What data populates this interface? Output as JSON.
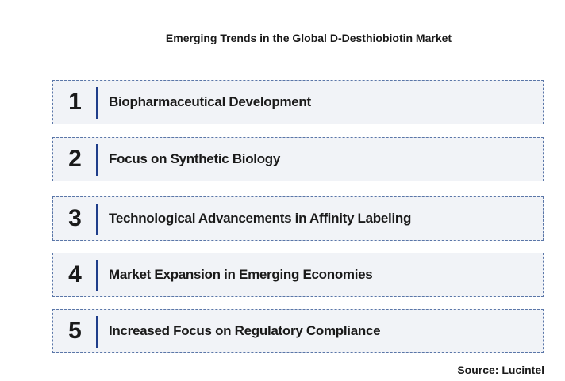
{
  "title": "Emerging Trends in the Global D-Desthiobiotin Market",
  "trends": [
    {
      "number": "1",
      "label": "Biopharmaceutical Development"
    },
    {
      "number": "2",
      "label": "Focus on Synthetic Biology"
    },
    {
      "number": "3",
      "label": "Technological Advancements in Affinity Labeling"
    },
    {
      "number": "4",
      "label": "Market Expansion in Emerging Economies"
    },
    {
      "number": "5",
      "label": "Increased Focus on Regulatory Compliance"
    }
  ],
  "source": "Source: Lucintel",
  "colors": {
    "row_background": "#f1f3f7",
    "row_border": "#5a76a8",
    "divider": "#1f3d8a",
    "text": "#1a1a1a"
  }
}
